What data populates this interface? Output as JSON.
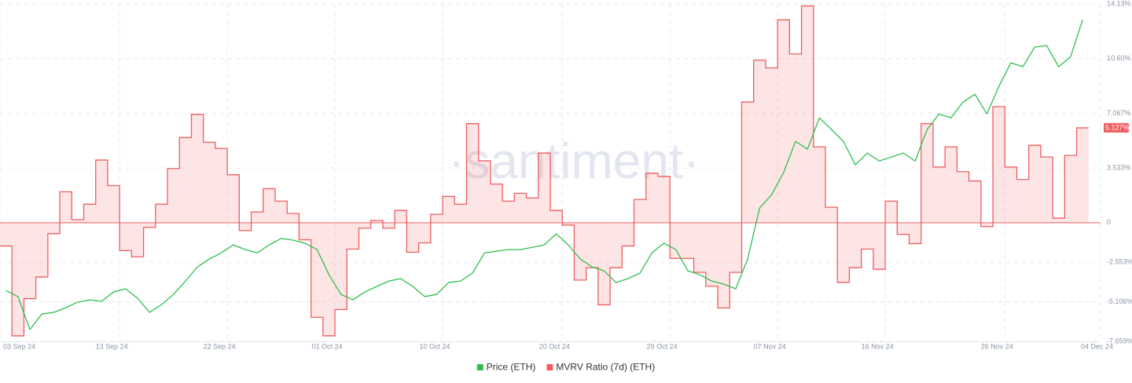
{
  "chart_data": {
    "type": "line_step",
    "watermark": "·santiment·",
    "grid": true,
    "legend": "bottom",
    "x": [
      "2024-09-03",
      "2024-09-04",
      "2024-09-05",
      "2024-09-06",
      "2024-09-07",
      "2024-09-08",
      "2024-09-09",
      "2024-09-10",
      "2024-09-11",
      "2024-09-12",
      "2024-09-13",
      "2024-09-14",
      "2024-09-15",
      "2024-09-16",
      "2024-09-17",
      "2024-09-18",
      "2024-09-19",
      "2024-09-20",
      "2024-09-21",
      "2024-09-22",
      "2024-09-23",
      "2024-09-24",
      "2024-09-25",
      "2024-09-26",
      "2024-09-27",
      "2024-09-28",
      "2024-09-29",
      "2024-09-30",
      "2024-10-01",
      "2024-10-02",
      "2024-10-03",
      "2024-10-04",
      "2024-10-05",
      "2024-10-06",
      "2024-10-07",
      "2024-10-08",
      "2024-10-09",
      "2024-10-10",
      "2024-10-11",
      "2024-10-12",
      "2024-10-13",
      "2024-10-14",
      "2024-10-15",
      "2024-10-16",
      "2024-10-17",
      "2024-10-18",
      "2024-10-19",
      "2024-10-20",
      "2024-10-21",
      "2024-10-22",
      "2024-10-23",
      "2024-10-24",
      "2024-10-25",
      "2024-10-26",
      "2024-10-27",
      "2024-10-28",
      "2024-10-29",
      "2024-10-30",
      "2024-10-31",
      "2024-11-01",
      "2024-11-02",
      "2024-11-03",
      "2024-11-04",
      "2024-11-05",
      "2024-11-06",
      "2024-11-07",
      "2024-11-08",
      "2024-11-09",
      "2024-11-10",
      "2024-11-11",
      "2024-11-12",
      "2024-11-13",
      "2024-11-14",
      "2024-11-15",
      "2024-11-16",
      "2024-11-17",
      "2024-11-18",
      "2024-11-19",
      "2024-11-20",
      "2024-11-21",
      "2024-11-22",
      "2024-11-23",
      "2024-11-24",
      "2024-11-25",
      "2024-11-26",
      "2024-11-27",
      "2024-11-28",
      "2024-11-29",
      "2024-11-30",
      "2024-12-01",
      "2024-12-02"
    ],
    "xlim": [
      "2024-09-03",
      "2024-12-04"
    ],
    "xticks": [
      {
        "value": "2024-09-03",
        "label": "03 Sep 24"
      },
      {
        "value": "2024-09-13",
        "label": "13 Sep 24"
      },
      {
        "value": "2024-09-22",
        "label": "22 Sep 24"
      },
      {
        "value": "2024-10-01",
        "label": "01 Oct 24"
      },
      {
        "value": "2024-10-10",
        "label": "10 Oct 24"
      },
      {
        "value": "2024-10-20",
        "label": "20 Oct 24"
      },
      {
        "value": "2024-10-29",
        "label": "29 Oct 24"
      },
      {
        "value": "2024-11-07",
        "label": "07 Nov 24"
      },
      {
        "value": "2024-11-16",
        "label": "16 Nov 24"
      },
      {
        "value": "2024-11-26",
        "label": "26 Nov 24"
      },
      {
        "value": "2024-12-04",
        "label": "04 Dec 24"
      }
    ],
    "ylim": [
      -7.659,
      14.13
    ],
    "yticks": [
      {
        "value": 14.13,
        "label": "14.13%"
      },
      {
        "value": 10.6,
        "label": "10.60%"
      },
      {
        "value": 7.067,
        "label": "7.067%"
      },
      {
        "value": 3.533,
        "label": "3.533%"
      },
      0,
      {
        "value": -2.553,
        "label": "-2.553%"
      },
      {
        "value": -5.106,
        "label": "-5.106%"
      },
      {
        "value": -7.659,
        "label": "-7.659%"
      }
    ],
    "y2lim": [
      2239,
      3889
    ],
    "series": [
      {
        "name": "Price (ETH)",
        "color": "#2fbf4f",
        "axis": "y2",
        "style": "line",
        "values": [
          2488,
          2458,
          2297,
          2373,
          2381,
          2404,
          2431,
          2442,
          2435,
          2481,
          2496,
          2450,
          2381,
          2419,
          2469,
          2534,
          2603,
          2642,
          2672,
          2711,
          2688,
          2672,
          2711,
          2742,
          2734,
          2719,
          2688,
          2565,
          2469,
          2442,
          2481,
          2508,
          2534,
          2546,
          2508,
          2458,
          2469,
          2527,
          2534,
          2573,
          2672,
          2680,
          2688,
          2688,
          2699,
          2711,
          2765,
          2711,
          2642,
          2603,
          2584,
          2527,
          2546,
          2573,
          2672,
          2719,
          2688,
          2584,
          2565,
          2534,
          2519,
          2496,
          2642,
          2891,
          2956,
          3064,
          3217,
          3179,
          3332,
          3275,
          3217,
          3102,
          3160,
          3121,
          3140,
          3160,
          3121,
          3275,
          3351,
          3332,
          3409,
          3447,
          3351,
          3486,
          3601,
          3582,
          3678,
          3685,
          3582,
          3631,
          3812
        ]
      },
      {
        "name": "MVRV Ratio (7d) (ETH)",
        "color": "#f05d5e",
        "style": "step",
        "last_label": "6.127%",
        "values": [
          -1.5,
          -7.3,
          -4.9,
          -3.5,
          -0.7,
          2.0,
          0.2,
          1.2,
          4.05,
          2.4,
          -1.8,
          -2.2,
          -0.3,
          1.2,
          3.5,
          5.5,
          7.0,
          5.2,
          4.8,
          3.1,
          -0.5,
          0.7,
          2.2,
          1.4,
          0.6,
          -1.1,
          -6.1,
          -7.3,
          -5.6,
          -1.7,
          -0.35,
          0.15,
          -0.35,
          0.8,
          -1.9,
          -1.3,
          0.55,
          1.7,
          1.2,
          6.4,
          4.0,
          2.5,
          1.4,
          1.9,
          1.6,
          4.5,
          0.8,
          -0.15,
          -3.7,
          -2.9,
          -5.3,
          -2.9,
          -1.5,
          1.5,
          3.2,
          3.0,
          -2.3,
          -2.3,
          -3.2,
          -4.1,
          -5.5,
          -3.2,
          7.8,
          10.5,
          10.0,
          13.1,
          10.9,
          14.0,
          4.9,
          1.0,
          -3.85,
          -2.9,
          -1.7,
          -3.0,
          1.4,
          -0.75,
          -1.35,
          6.4,
          3.6,
          4.9,
          3.3,
          2.7,
          -0.25,
          7.5,
          3.6,
          2.8,
          5.0,
          4.25,
          0.3,
          4.35,
          6.127
        ]
      }
    ]
  }
}
